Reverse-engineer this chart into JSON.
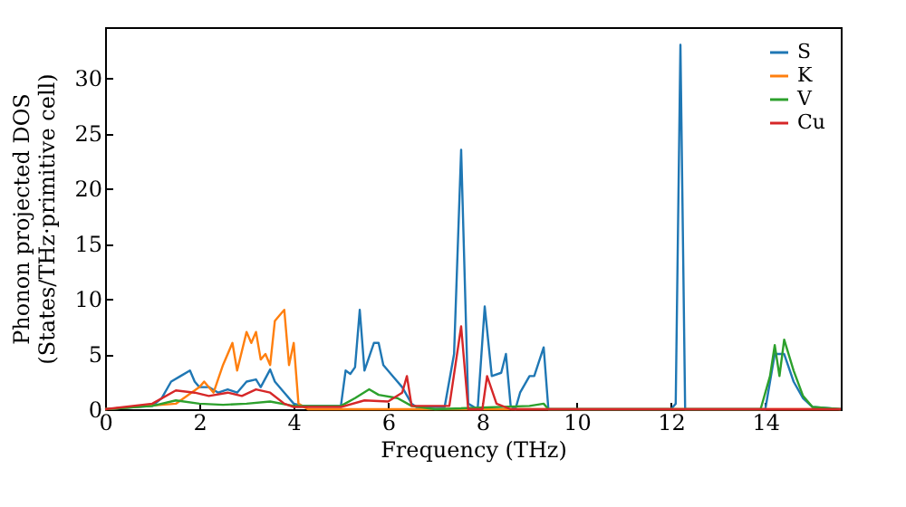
{
  "chart_data": {
    "type": "line",
    "xlabel": "Frequency (THz)",
    "ylabel": "Phonon projected DOS\n(States/THz·primitive cell)",
    "xlim": [
      0,
      15.6
    ],
    "xticks": [
      0,
      2,
      4,
      6,
      8,
      10,
      12,
      14
    ],
    "ylim": [
      0,
      34.6
    ],
    "yticks": [
      0,
      5,
      10,
      15,
      20,
      25,
      30
    ],
    "grid": false,
    "legend": "top right",
    "marker": "none",
    "line_style": "solid",
    "series": [
      {
        "name": "S",
        "color": "#1f77b4",
        "x": [
          0,
          1,
          1.2,
          1.4,
          1.6,
          1.8,
          1.9,
          2.0,
          2.2,
          2.4,
          2.6,
          2.8,
          3.0,
          3.2,
          3.3,
          3.5,
          3.6,
          3.8,
          4.0,
          4.2,
          5.0,
          5.1,
          5.2,
          5.3,
          5.4,
          5.5,
          5.7,
          5.8,
          5.9,
          6.1,
          6.3,
          6.5,
          6.6,
          7.2,
          7.4,
          7.55,
          7.7,
          7.9,
          8.05,
          8.2,
          8.4,
          8.5,
          8.6,
          8.7,
          8.8,
          9.0,
          9.1,
          9.3,
          9.4,
          12.0,
          12.1,
          12.2,
          12.3,
          14.0,
          14.2,
          14.4,
          14.6,
          14.8,
          15.0,
          15.6
        ],
        "values": [
          0,
          0.3,
          1,
          2.5,
          3,
          3.5,
          2.5,
          2,
          2,
          1.5,
          1.8,
          1.5,
          2.5,
          2.7,
          2,
          3.6,
          2.5,
          1.5,
          0.5,
          0.3,
          0.3,
          3.5,
          3.2,
          3.8,
          9,
          3.5,
          6,
          6,
          4,
          3,
          2,
          0.5,
          0.2,
          0.2,
          5,
          23.5,
          0.5,
          0,
          9.3,
          3,
          3.3,
          5,
          0.3,
          0,
          1.5,
          3,
          3,
          5.6,
          0,
          0,
          0.5,
          33,
          0,
          0,
          5,
          5,
          2.5,
          1,
          0.2,
          0
        ]
      },
      {
        "name": "K",
        "color": "#ff7f0e",
        "x": [
          0,
          1.5,
          2,
          2.1,
          2.3,
          2.5,
          2.7,
          2.8,
          3.0,
          3.1,
          3.2,
          3.3,
          3.4,
          3.5,
          3.6,
          3.7,
          3.8,
          3.9,
          4.0,
          4.1,
          4.3,
          15.6
        ],
        "values": [
          0,
          0.5,
          2,
          2.5,
          1.5,
          4,
          6,
          3.5,
          7,
          6,
          7,
          4.5,
          5,
          4,
          8,
          8.5,
          9,
          4,
          6,
          0.5,
          0,
          0
        ]
      },
      {
        "name": "V",
        "color": "#2ca02c",
        "x": [
          0,
          1,
          1.5,
          2,
          2.5,
          3,
          3.5,
          4,
          5,
          5.3,
          5.6,
          5.8,
          6.2,
          6.5,
          7,
          9,
          9.3,
          9.4,
          13.9,
          14.1,
          14.2,
          14.3,
          14.4,
          14.6,
          14.8,
          15.0,
          15.6
        ],
        "values": [
          0,
          0.3,
          0.8,
          0.5,
          0.4,
          0.5,
          0.7,
          0.3,
          0.3,
          1,
          1.8,
          1.3,
          1,
          0.3,
          0,
          0.3,
          0.5,
          0,
          0,
          3,
          5.8,
          3,
          6.3,
          3.5,
          1.2,
          0.2,
          0
        ]
      },
      {
        "name": "Cu",
        "color": "#d62728",
        "x": [
          0,
          1,
          1.5,
          1.9,
          2.2,
          2.6,
          2.9,
          3.2,
          3.5,
          3.8,
          4,
          5,
          5.5,
          6.0,
          6.3,
          6.4,
          6.5,
          7.3,
          7.55,
          7.7,
          8.0,
          8.1,
          8.3,
          8.6,
          15.6
        ],
        "values": [
          0,
          0.5,
          1.7,
          1.5,
          1.2,
          1.5,
          1.2,
          1.8,
          1.5,
          0.5,
          0.2,
          0.2,
          0.8,
          0.7,
          1.5,
          3,
          0.3,
          0.3,
          7.5,
          0,
          0,
          3,
          0.5,
          0,
          0
        ]
      }
    ]
  }
}
